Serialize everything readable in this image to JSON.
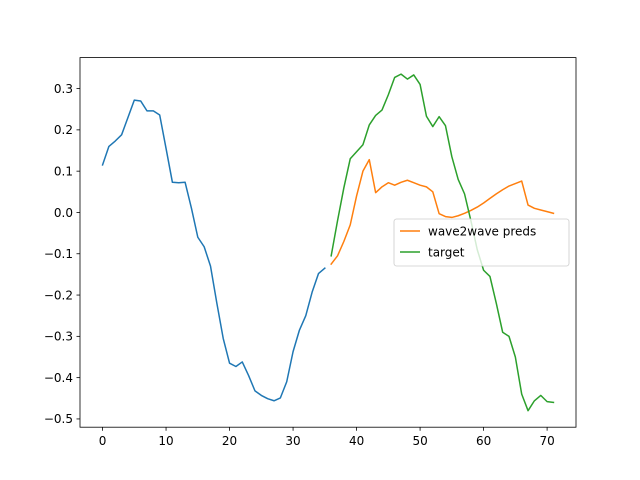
{
  "chart_data": {
    "type": "line",
    "title": "",
    "xlabel": "",
    "ylabel": "",
    "xlim": [
      -3.55,
      74.55
    ],
    "ylim": [
      -0.52,
      0.375
    ],
    "xticks": [
      0,
      10,
      20,
      30,
      40,
      50,
      60,
      70
    ],
    "xtick_labels": [
      "0",
      "10",
      "20",
      "30",
      "40",
      "50",
      "60",
      "70"
    ],
    "yticks": [
      -0.5,
      -0.4,
      -0.3,
      -0.2,
      -0.1,
      0.0,
      0.1,
      0.2,
      0.3
    ],
    "ytick_labels": [
      "−0.5",
      "−0.4",
      "−0.3",
      "−0.2",
      "−0.1",
      "0.0",
      "0.1",
      "0.2",
      "0.3"
    ],
    "grid": false,
    "legend_placement": "center-right",
    "series": [
      {
        "name": "",
        "color": "#1f77b4",
        "x": [
          0,
          1,
          2,
          3,
          4,
          5,
          6,
          7,
          8,
          9,
          10,
          11,
          12,
          13,
          14,
          15,
          16,
          17,
          18,
          19,
          20,
          21,
          22,
          23,
          24,
          25,
          26,
          27,
          28,
          29,
          30,
          31,
          32,
          33,
          34,
          35
        ],
        "y": [
          0.115,
          0.16,
          0.173,
          0.188,
          0.23,
          0.272,
          0.27,
          0.246,
          0.246,
          0.236,
          0.155,
          0.073,
          0.072,
          0.073,
          0.01,
          -0.06,
          -0.083,
          -0.13,
          -0.22,
          -0.305,
          -0.365,
          -0.373,
          -0.362,
          -0.395,
          -0.432,
          -0.443,
          -0.451,
          -0.456,
          -0.449,
          -0.41,
          -0.337,
          -0.285,
          -0.25,
          -0.193,
          -0.148,
          -0.135
        ]
      },
      {
        "name": "wave2wave preds",
        "color": "#ff7f0e",
        "x": [
          36,
          37,
          38,
          39,
          40,
          41,
          42,
          43,
          44,
          45,
          46,
          47,
          48,
          49,
          50,
          51,
          52,
          53,
          54,
          55,
          56,
          57,
          58,
          59,
          60,
          61,
          62,
          63,
          64,
          65,
          66,
          67,
          68,
          69,
          70,
          71
        ],
        "y": [
          -0.125,
          -0.105,
          -0.07,
          -0.03,
          0.04,
          0.1,
          0.128,
          0.048,
          0.062,
          0.072,
          0.066,
          0.073,
          0.078,
          0.072,
          0.066,
          0.062,
          0.05,
          -0.003,
          -0.01,
          -0.012,
          -0.008,
          -0.002,
          0.005,
          0.013,
          0.023,
          0.034,
          0.045,
          0.055,
          0.064,
          0.07,
          0.076,
          0.018,
          0.01,
          0.006,
          0.002,
          -0.002
        ]
      },
      {
        "name": "target",
        "color": "#2ca02c",
        "x": [
          36,
          37,
          38,
          39,
          40,
          41,
          42,
          43,
          44,
          45,
          46,
          47,
          48,
          49,
          50,
          51,
          52,
          53,
          54,
          55,
          56,
          57,
          58,
          59,
          60,
          61,
          62,
          63,
          64,
          65,
          66,
          67,
          68,
          69,
          70,
          71
        ],
        "y": [
          -0.105,
          -0.02,
          0.06,
          0.13,
          0.147,
          0.164,
          0.212,
          0.235,
          0.248,
          0.285,
          0.327,
          0.335,
          0.323,
          0.333,
          0.31,
          0.233,
          0.208,
          0.232,
          0.21,
          0.135,
          0.08,
          0.045,
          -0.02,
          -0.09,
          -0.14,
          -0.155,
          -0.22,
          -0.29,
          -0.3,
          -0.35,
          -0.44,
          -0.48,
          -0.456,
          -0.443,
          -0.458,
          -0.46
        ]
      }
    ]
  }
}
